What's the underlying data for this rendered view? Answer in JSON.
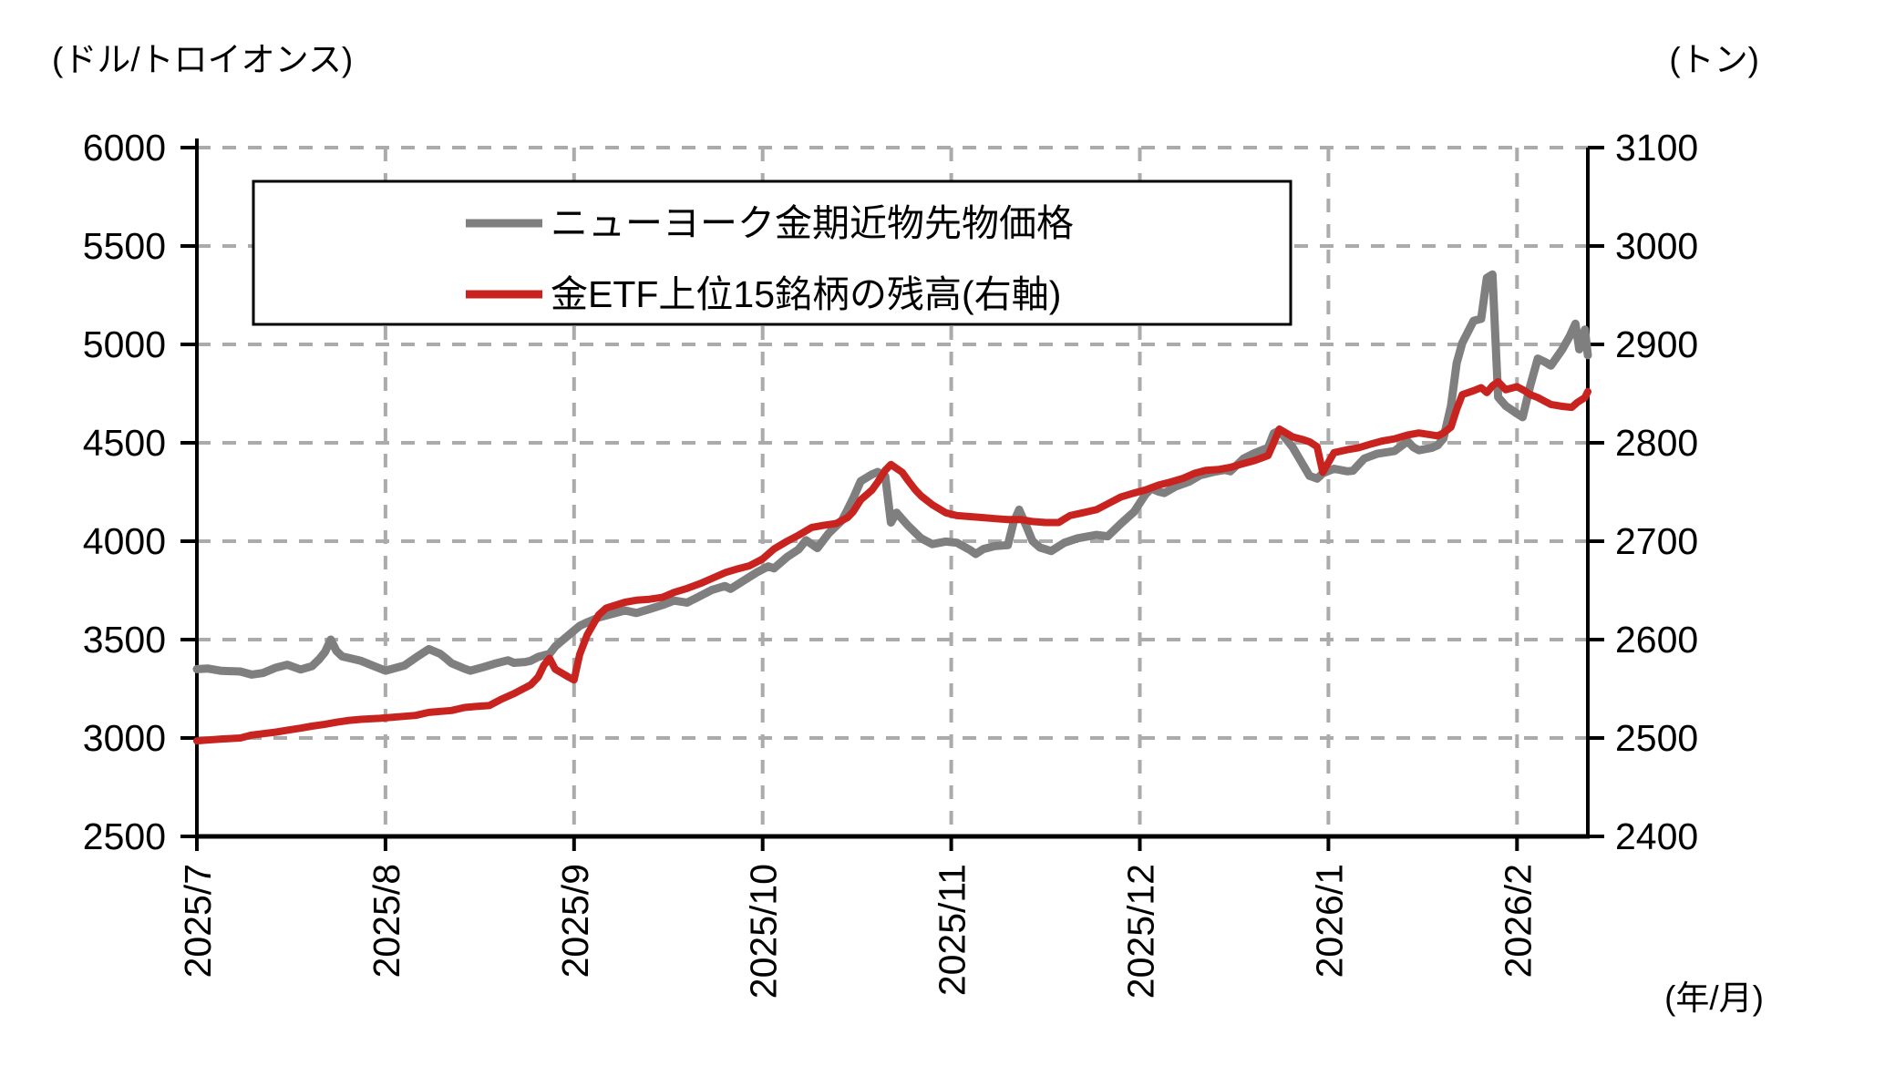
{
  "chart_data": {
    "type": "line",
    "title": "",
    "grid": true,
    "legend_position": "top-left-inside",
    "left_axis": {
      "label": "(ドル/トロイオンス)",
      "min": 2500,
      "max": 6000,
      "step": 500,
      "ticks": [
        6000,
        5500,
        5000,
        4500,
        4000,
        3500,
        3000,
        2500
      ]
    },
    "right_axis": {
      "label": "(トン)",
      "min": 2400,
      "max": 3100,
      "step": 100,
      "ticks": [
        3100,
        3000,
        2900,
        2800,
        2700,
        2600,
        2500,
        2400
      ]
    },
    "x_axis": {
      "label": "(年/月)",
      "ticks": [
        "2025/7",
        "2025/8",
        "2025/9",
        "2025/10",
        "2025/11",
        "2025/12",
        "2026/1",
        "2026/2"
      ],
      "range_months": [
        0,
        7.38
      ]
    },
    "series": [
      {
        "name": "ニューヨーク金期近物先物価格",
        "axis": "left",
        "color": "#7f7f7f",
        "points": [
          [
            0.0,
            3350
          ],
          [
            0.06,
            3353
          ],
          [
            0.13,
            3341
          ],
          [
            0.23,
            3338
          ],
          [
            0.29,
            3322
          ],
          [
            0.35,
            3330
          ],
          [
            0.42,
            3358
          ],
          [
            0.48,
            3372
          ],
          [
            0.55,
            3348
          ],
          [
            0.61,
            3365
          ],
          [
            0.65,
            3402
          ],
          [
            0.68,
            3438
          ],
          [
            0.71,
            3500
          ],
          [
            0.74,
            3442
          ],
          [
            0.77,
            3415
          ],
          [
            0.87,
            3392
          ],
          [
            0.94,
            3365
          ],
          [
            1.0,
            3342
          ],
          [
            1.1,
            3368
          ],
          [
            1.16,
            3408
          ],
          [
            1.23,
            3452
          ],
          [
            1.29,
            3428
          ],
          [
            1.32,
            3405
          ],
          [
            1.35,
            3380
          ],
          [
            1.42,
            3352
          ],
          [
            1.45,
            3342
          ],
          [
            1.52,
            3360
          ],
          [
            1.58,
            3378
          ],
          [
            1.65,
            3395
          ],
          [
            1.68,
            3382
          ],
          [
            1.74,
            3386
          ],
          [
            1.77,
            3392
          ],
          [
            1.81,
            3412
          ],
          [
            1.87,
            3428
          ],
          [
            1.9,
            3465
          ],
          [
            2.0,
            3546
          ],
          [
            2.03,
            3570
          ],
          [
            2.07,
            3588
          ],
          [
            2.13,
            3612
          ],
          [
            2.2,
            3630
          ],
          [
            2.27,
            3648
          ],
          [
            2.33,
            3635
          ],
          [
            2.4,
            3655
          ],
          [
            2.47,
            3676
          ],
          [
            2.53,
            3698
          ],
          [
            2.6,
            3688
          ],
          [
            2.67,
            3722
          ],
          [
            2.73,
            3752
          ],
          [
            2.8,
            3772
          ],
          [
            2.83,
            3758
          ],
          [
            2.9,
            3800
          ],
          [
            2.97,
            3842
          ],
          [
            3.03,
            3872
          ],
          [
            3.06,
            3862
          ],
          [
            3.13,
            3920
          ],
          [
            3.19,
            3958
          ],
          [
            3.23,
            4005
          ],
          [
            3.29,
            3965
          ],
          [
            3.35,
            4040
          ],
          [
            3.42,
            4105
          ],
          [
            3.45,
            4160
          ],
          [
            3.48,
            4218
          ],
          [
            3.52,
            4305
          ],
          [
            3.58,
            4340
          ],
          [
            3.61,
            4352
          ],
          [
            3.65,
            4330
          ],
          [
            3.68,
            4095
          ],
          [
            3.71,
            4145
          ],
          [
            3.77,
            4080
          ],
          [
            3.84,
            4015
          ],
          [
            3.9,
            3985
          ],
          [
            3.97,
            3998
          ],
          [
            4.03,
            3992
          ],
          [
            4.1,
            3955
          ],
          [
            4.13,
            3935
          ],
          [
            4.17,
            3960
          ],
          [
            4.23,
            3975
          ],
          [
            4.3,
            3980
          ],
          [
            4.33,
            4095
          ],
          [
            4.36,
            4160
          ],
          [
            4.4,
            4072
          ],
          [
            4.43,
            4002
          ],
          [
            4.47,
            3968
          ],
          [
            4.53,
            3950
          ],
          [
            4.6,
            3992
          ],
          [
            4.67,
            4015
          ],
          [
            4.77,
            4032
          ],
          [
            4.83,
            4025
          ],
          [
            4.9,
            4090
          ],
          [
            4.97,
            4150
          ],
          [
            5.03,
            4238
          ],
          [
            5.06,
            4268
          ],
          [
            5.1,
            4252
          ],
          [
            5.13,
            4245
          ],
          [
            5.19,
            4278
          ],
          [
            5.26,
            4302
          ],
          [
            5.32,
            4335
          ],
          [
            5.39,
            4352
          ],
          [
            5.45,
            4362
          ],
          [
            5.48,
            4355
          ],
          [
            5.55,
            4420
          ],
          [
            5.61,
            4448
          ],
          [
            5.68,
            4475
          ],
          [
            5.71,
            4548
          ],
          [
            5.74,
            4562
          ],
          [
            5.81,
            4478
          ],
          [
            5.9,
            4332
          ],
          [
            5.94,
            4318
          ],
          [
            5.97,
            4345
          ],
          [
            6.03,
            4368
          ],
          [
            6.1,
            4355
          ],
          [
            6.13,
            4358
          ],
          [
            6.19,
            4420
          ],
          [
            6.26,
            4445
          ],
          [
            6.35,
            4458
          ],
          [
            6.42,
            4508
          ],
          [
            6.45,
            4478
          ],
          [
            6.48,
            4462
          ],
          [
            6.55,
            4475
          ],
          [
            6.58,
            4488
          ],
          [
            6.61,
            4522
          ],
          [
            6.65,
            4688
          ],
          [
            6.68,
            4905
          ],
          [
            6.71,
            5008
          ],
          [
            6.77,
            5120
          ],
          [
            6.81,
            5130
          ],
          [
            6.84,
            5338
          ],
          [
            6.87,
            5355
          ],
          [
            6.9,
            4732
          ],
          [
            6.94,
            4688
          ],
          [
            7.0,
            4648
          ],
          [
            7.03,
            4630
          ],
          [
            7.07,
            4790
          ],
          [
            7.11,
            4928
          ],
          [
            7.15,
            4910
          ],
          [
            7.18,
            4892
          ],
          [
            7.24,
            4975
          ],
          [
            7.28,
            5042
          ],
          [
            7.31,
            5105
          ],
          [
            7.33,
            4975
          ],
          [
            7.36,
            5075
          ],
          [
            7.38,
            4945
          ]
        ]
      },
      {
        "name": "金ETF上位15銘柄の残高(右軸)",
        "axis": "right",
        "color": "#c8231f",
        "points": [
          [
            0.0,
            2497
          ],
          [
            0.06,
            2498
          ],
          [
            0.13,
            2499
          ],
          [
            0.23,
            2500
          ],
          [
            0.29,
            2503
          ],
          [
            0.42,
            2506
          ],
          [
            0.48,
            2508
          ],
          [
            0.55,
            2510
          ],
          [
            0.61,
            2512
          ],
          [
            0.68,
            2514
          ],
          [
            0.74,
            2516
          ],
          [
            0.81,
            2518
          ],
          [
            0.87,
            2519
          ],
          [
            0.97,
            2520
          ],
          [
            1.1,
            2522
          ],
          [
            1.16,
            2523
          ],
          [
            1.23,
            2526
          ],
          [
            1.35,
            2528
          ],
          [
            1.42,
            2531
          ],
          [
            1.48,
            2532
          ],
          [
            1.55,
            2533
          ],
          [
            1.61,
            2539
          ],
          [
            1.68,
            2545
          ],
          [
            1.77,
            2554
          ],
          [
            1.81,
            2562
          ],
          [
            1.84,
            2574
          ],
          [
            1.87,
            2581
          ],
          [
            1.9,
            2570
          ],
          [
            1.97,
            2562
          ],
          [
            2.0,
            2559
          ],
          [
            2.03,
            2585
          ],
          [
            2.07,
            2605
          ],
          [
            2.13,
            2625
          ],
          [
            2.17,
            2632
          ],
          [
            2.27,
            2638
          ],
          [
            2.33,
            2640
          ],
          [
            2.4,
            2641
          ],
          [
            2.47,
            2643
          ],
          [
            2.53,
            2648
          ],
          [
            2.6,
            2652
          ],
          [
            2.67,
            2657
          ],
          [
            2.73,
            2662
          ],
          [
            2.8,
            2668
          ],
          [
            2.87,
            2672
          ],
          [
            2.93,
            2675
          ],
          [
            3.0,
            2682
          ],
          [
            3.06,
            2692
          ],
          [
            3.13,
            2700
          ],
          [
            3.19,
            2706
          ],
          [
            3.26,
            2714
          ],
          [
            3.32,
            2716
          ],
          [
            3.39,
            2718
          ],
          [
            3.45,
            2724
          ],
          [
            3.48,
            2730
          ],
          [
            3.52,
            2742
          ],
          [
            3.58,
            2752
          ],
          [
            3.61,
            2760
          ],
          [
            3.65,
            2772
          ],
          [
            3.68,
            2778
          ],
          [
            3.74,
            2770
          ],
          [
            3.77,
            2762
          ],
          [
            3.81,
            2752
          ],
          [
            3.84,
            2746
          ],
          [
            3.9,
            2737
          ],
          [
            3.97,
            2729
          ],
          [
            4.03,
            2726
          ],
          [
            4.1,
            2725
          ],
          [
            4.17,
            2724
          ],
          [
            4.23,
            2723
          ],
          [
            4.3,
            2722
          ],
          [
            4.37,
            2722
          ],
          [
            4.43,
            2720
          ],
          [
            4.5,
            2719
          ],
          [
            4.57,
            2719
          ],
          [
            4.63,
            2726
          ],
          [
            4.7,
            2729
          ],
          [
            4.77,
            2732
          ],
          [
            4.83,
            2738
          ],
          [
            4.9,
            2745
          ],
          [
            4.97,
            2749
          ],
          [
            5.03,
            2752
          ],
          [
            5.1,
            2757
          ],
          [
            5.16,
            2760
          ],
          [
            5.23,
            2764
          ],
          [
            5.29,
            2769
          ],
          [
            5.35,
            2772
          ],
          [
            5.42,
            2773
          ],
          [
            5.48,
            2775
          ],
          [
            5.55,
            2779
          ],
          [
            5.61,
            2782
          ],
          [
            5.68,
            2787
          ],
          [
            5.71,
            2800
          ],
          [
            5.74,
            2814
          ],
          [
            5.81,
            2806
          ],
          [
            5.87,
            2803
          ],
          [
            5.9,
            2801
          ],
          [
            5.94,
            2796
          ],
          [
            5.97,
            2770
          ],
          [
            6.03,
            2790
          ],
          [
            6.1,
            2793
          ],
          [
            6.16,
            2795
          ],
          [
            6.23,
            2799
          ],
          [
            6.29,
            2802
          ],
          [
            6.35,
            2804
          ],
          [
            6.42,
            2808
          ],
          [
            6.48,
            2810
          ],
          [
            6.55,
            2808
          ],
          [
            6.58,
            2807
          ],
          [
            6.61,
            2810
          ],
          [
            6.65,
            2816
          ],
          [
            6.68,
            2834
          ],
          [
            6.71,
            2849
          ],
          [
            6.77,
            2853
          ],
          [
            6.81,
            2856
          ],
          [
            6.84,
            2851
          ],
          [
            6.87,
            2858
          ],
          [
            6.9,
            2862
          ],
          [
            6.94,
            2854
          ],
          [
            7.0,
            2857
          ],
          [
            7.04,
            2853
          ],
          [
            7.07,
            2849
          ],
          [
            7.11,
            2846
          ],
          [
            7.14,
            2843
          ],
          [
            7.18,
            2839
          ],
          [
            7.24,
            2837
          ],
          [
            7.29,
            2836
          ],
          [
            7.32,
            2841
          ],
          [
            7.36,
            2846
          ],
          [
            7.38,
            2852
          ]
        ]
      }
    ]
  }
}
